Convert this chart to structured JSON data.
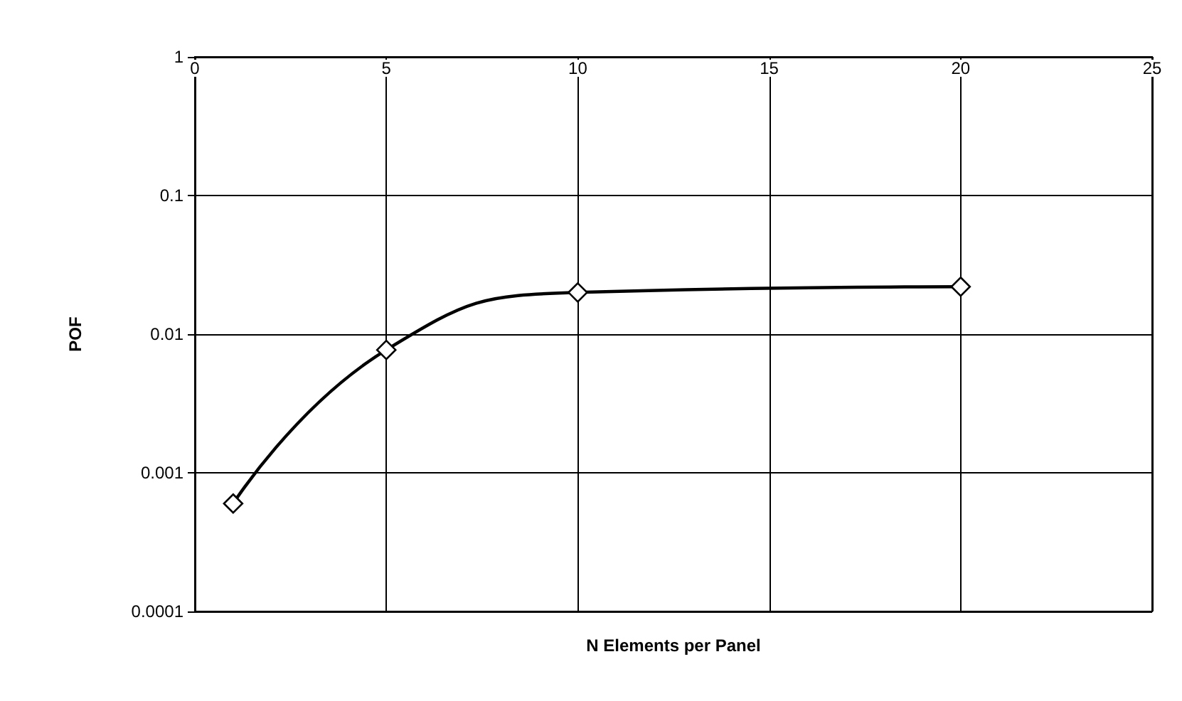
{
  "chart_data": {
    "type": "line",
    "xlabel": "N Elements per Panel",
    "ylabel": "POF",
    "x": [
      1,
      5,
      10,
      20
    ],
    "series": [
      {
        "color": "#000000",
        "values": [
          0.0006,
          0.0077,
          0.02,
          0.022
        ]
      }
    ],
    "xlim": [
      0,
      25
    ],
    "xticks": [
      0,
      5,
      10,
      15,
      20,
      25
    ],
    "ylim": [
      0.0001,
      1
    ],
    "yticks": [
      0.0001,
      0.001,
      0.01,
      0.1,
      1
    ],
    "log": "y",
    "grid": true,
    "marker": "diamond",
    "line_style": "solid"
  }
}
